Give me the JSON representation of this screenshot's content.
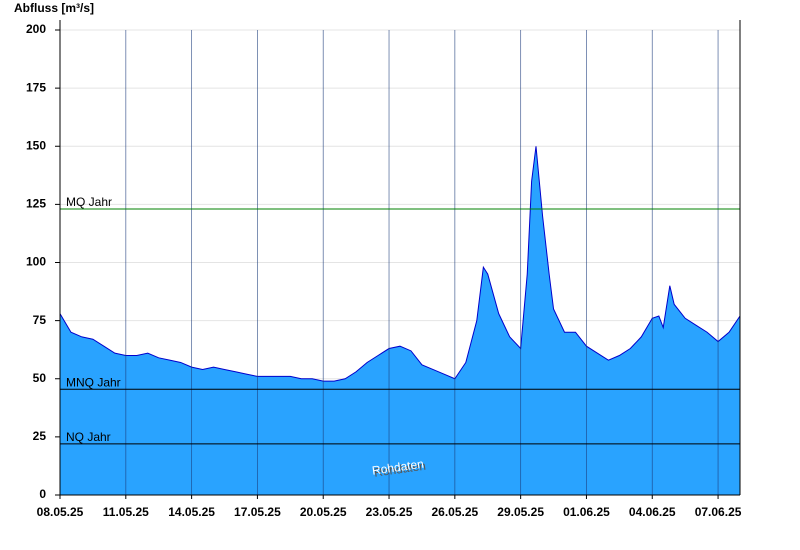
{
  "chart_data": {
    "type": "area",
    "y_label": "Abfluss [m³/s]",
    "x": [
      0,
      0.5,
      1,
      1.5,
      2,
      2.5,
      3,
      3.5,
      4,
      4.5,
      5,
      5.5,
      6,
      6.5,
      7,
      7.5,
      8,
      8.5,
      9,
      9.5,
      10,
      10.5,
      11,
      11.5,
      12,
      12.5,
      13,
      13.5,
      14,
      14.5,
      15,
      15.5,
      16,
      16.5,
      17,
      17.5,
      18,
      18.5,
      19,
      19.3,
      19.5,
      20,
      20.5,
      21,
      21.3,
      21.5,
      21.7,
      22,
      22.3,
      22.5,
      23,
      23.5,
      24,
      24.5,
      25,
      25.5,
      26,
      26.5,
      27,
      27.3,
      27.5,
      27.8,
      28,
      28.5,
      29,
      29.5,
      30,
      30.5,
      31
    ],
    "series": [
      {
        "name": "Abfluss",
        "color": "#0000cc",
        "fill": "#29a3ff",
        "values": [
          78,
          70,
          68,
          67,
          64,
          61,
          60,
          60,
          61,
          59,
          58,
          57,
          55,
          54,
          55,
          54,
          53,
          52,
          51,
          51,
          51,
          51,
          50,
          50,
          49,
          49,
          50,
          53,
          57,
          60,
          63,
          64,
          62,
          56,
          54,
          52,
          50,
          57,
          75,
          98,
          95,
          78,
          68,
          63,
          95,
          135,
          150,
          120,
          95,
          80,
          70,
          70,
          64,
          61,
          58,
          60,
          63,
          68,
          76,
          77,
          72,
          90,
          82,
          76,
          73,
          70,
          66,
          70,
          77
        ]
      }
    ],
    "xlim": [
      0,
      31
    ],
    "xticks": [
      {
        "value": 0,
        "label": "08.05.25"
      },
      {
        "value": 3,
        "label": "11.05.25"
      },
      {
        "value": 6,
        "label": "14.05.25"
      },
      {
        "value": 9,
        "label": "17.05.25"
      },
      {
        "value": 12,
        "label": "20.05.25"
      },
      {
        "value": 15,
        "label": "23.05.25"
      },
      {
        "value": 18,
        "label": "26.05.25"
      },
      {
        "value": 21,
        "label": "29.05.25"
      },
      {
        "value": 24,
        "label": "01.06.25"
      },
      {
        "value": 27,
        "label": "04.06.25"
      },
      {
        "value": 30,
        "label": "07.06.25"
      }
    ],
    "ylim": [
      0,
      200
    ],
    "yticks": [
      0,
      25,
      50,
      75,
      100,
      125,
      150,
      175,
      200
    ],
    "grid": true,
    "reference_lines": [
      {
        "label": "MQ Jahr",
        "value": 123,
        "color": "#008000"
      },
      {
        "label": "MNQ Jahr",
        "value": 45.5,
        "color": "#000000"
      },
      {
        "label": "NQ Jahr",
        "value": 22,
        "color": "#000000"
      }
    ],
    "annotation": "Rohdaten"
  }
}
